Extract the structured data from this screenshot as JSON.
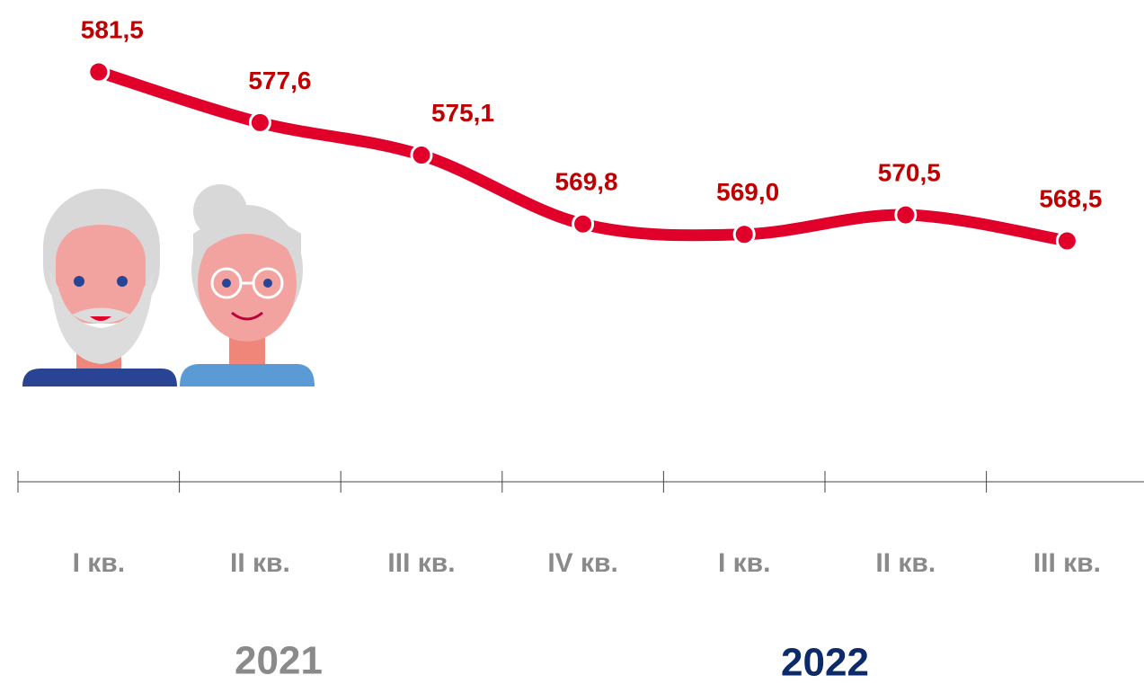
{
  "chart_data": {
    "type": "line",
    "categories": [
      "I кв.",
      "II кв.",
      "III кв.",
      "IV кв.",
      "I кв.",
      "II кв.",
      "III кв."
    ],
    "series": [
      {
        "color": "#e0002a",
        "values": [
          581.5,
          577.6,
          575.1,
          569.8,
          569.0,
          570.5,
          568.5
        ],
        "value_labels": [
          "581,5",
          "577,6",
          "575,1",
          "569,8",
          "569,0",
          "570,5",
          "568,5"
        ]
      }
    ],
    "year_groups": [
      {
        "label": "2021",
        "color": "#8a8a8a"
      },
      {
        "label": "2022",
        "color": "#0d2a6b"
      }
    ]
  }
}
